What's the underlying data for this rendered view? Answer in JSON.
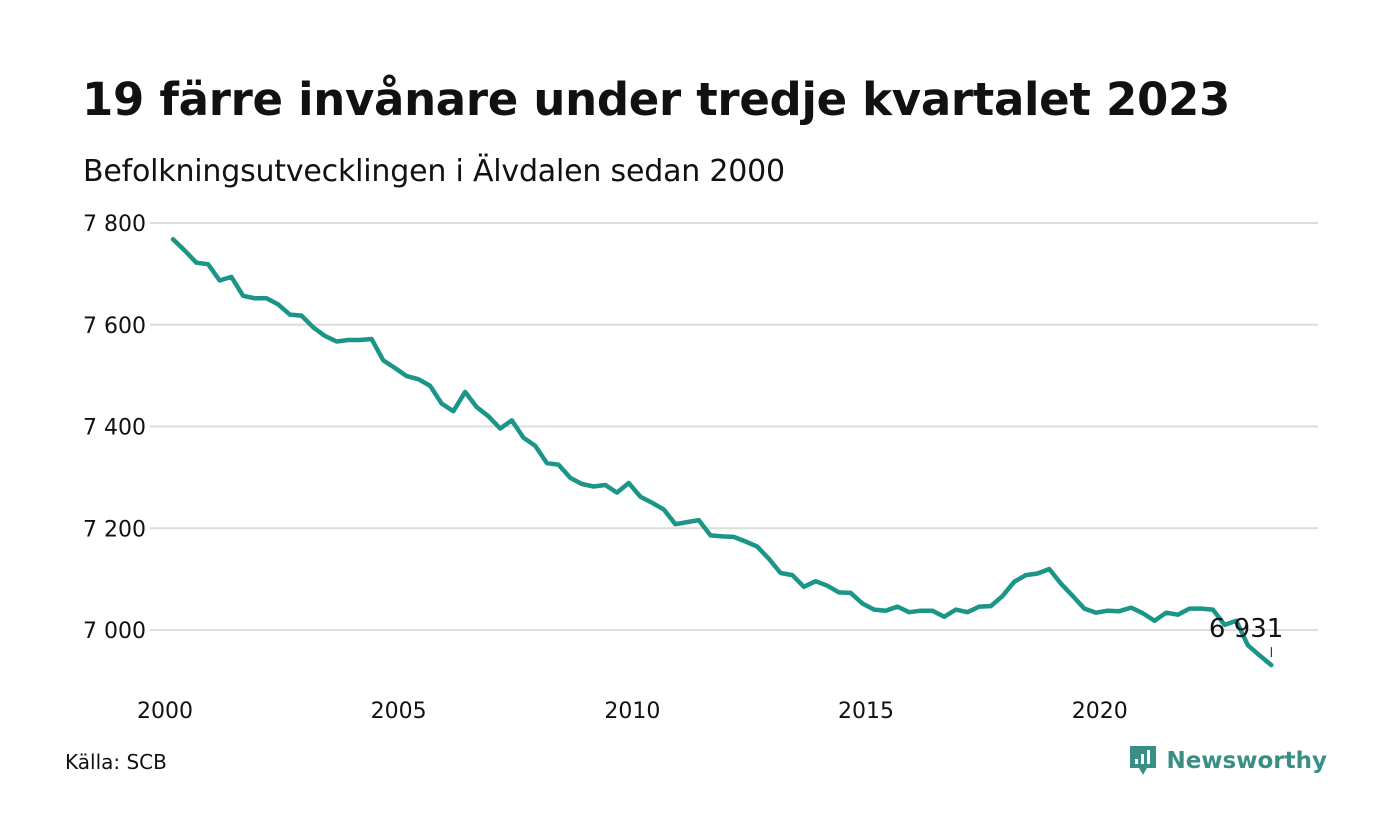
{
  "header": {
    "title": "19 färre invånare under tredje kvartalet 2023",
    "subtitle": "Befolkningsutvecklingen i Älvdalen sedan 2000"
  },
  "footer": {
    "source": "Källa: SCB",
    "brand": "Newsworthy",
    "brand_icon": "newsworthy-logo-icon"
  },
  "colors": {
    "line": "#1a9587",
    "grid": "#dcdcdc",
    "text": "#111111",
    "brand": "#3a8f85"
  },
  "chart_data": {
    "type": "line",
    "title": "19 färre invånare under tredje kvartalet 2023",
    "subtitle": "Befolkningsutvecklingen i Älvdalen sedan 2000",
    "xlabel": "",
    "ylabel": "",
    "xlim": [
      2000,
      2023.75
    ],
    "ylim": [
      6920,
      7800
    ],
    "grid": true,
    "legend": "none",
    "x_ticks": [
      {
        "value": 2000,
        "label": "2000"
      },
      {
        "value": 2005,
        "label": "2005"
      },
      {
        "value": 2010,
        "label": "2010"
      },
      {
        "value": 2015,
        "label": "2015"
      },
      {
        "value": 2020,
        "label": "2020"
      }
    ],
    "y_ticks": [
      {
        "value": 7000,
        "label": "7 000"
      },
      {
        "value": 7200,
        "label": "7 200"
      },
      {
        "value": 7400,
        "label": "7 400"
      },
      {
        "value": 7600,
        "label": "7 600"
      },
      {
        "value": 7800,
        "label": "7 800"
      }
    ],
    "annotation": {
      "x": 2023.5,
      "y": 6931,
      "label": "6 931"
    },
    "series": [
      {
        "start_year": 2000,
        "quarters_per_year": 4,
        "values": [
          7768,
          7746,
          7722,
          7719,
          7687,
          7694,
          7657,
          7652,
          7652,
          7640,
          7620,
          7618,
          7595,
          7578,
          7567,
          7570,
          7570,
          7572,
          7530,
          7515,
          7499,
          7493,
          7480,
          7445,
          7430,
          7468,
          7438,
          7420,
          7396,
          7412,
          7378,
          7362,
          7328,
          7325,
          7299,
          7287,
          7282,
          7285,
          7270,
          7289,
          7262,
          7250,
          7237,
          7208,
          7212,
          7216,
          7186,
          7184,
          7183,
          7174,
          7164,
          7140,
          7112,
          7108,
          7085,
          7096,
          7087,
          7074,
          7073,
          7052,
          7040,
          7038,
          7046,
          7035,
          7038,
          7038,
          7026,
          7040,
          7035,
          7046,
          7047,
          7067,
          7095,
          7108,
          7111,
          7120,
          7091,
          7067,
          7042,
          7034,
          7038,
          7037,
          7044,
          7033,
          7018,
          7034,
          7030,
          7042,
          7042,
          7040,
          7010,
          7018,
          6970,
          6950,
          6931
        ]
      }
    ]
  }
}
